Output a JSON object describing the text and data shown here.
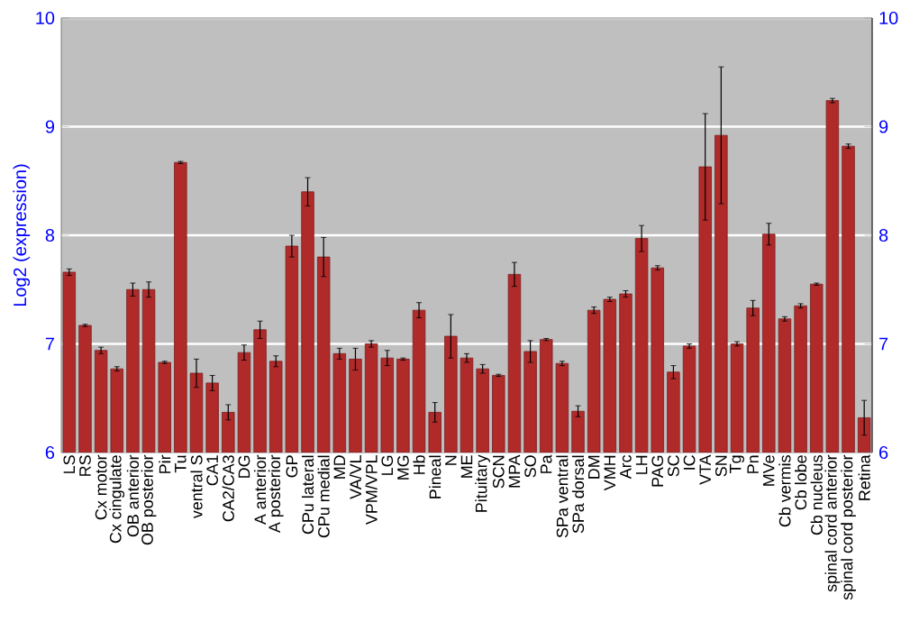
{
  "chart_data": {
    "type": "bar",
    "ylabel": "Log2 (expression)",
    "categories": [
      "LS",
      "RS",
      "Cx motor",
      "Cx cingulate",
      "OB anterior",
      "OB posterior",
      "Pir",
      "Tu",
      "ventral S",
      "CA1",
      "CA2/CA3",
      "DG",
      "A anterior",
      "A posterior",
      "GP",
      "CPu lateral",
      "CPu medial",
      "MD",
      "VA/VL",
      "VPM/VPL",
      "LG",
      "MG",
      "Hb",
      "Pineal",
      "N",
      "ME",
      "Pituitary",
      "SCN",
      "MPA",
      "SO",
      "Pa",
      "SPa ventral",
      "SPa dorsal",
      "DM",
      "VMH",
      "Arc",
      "LH",
      "PAG",
      "SC",
      "IC",
      "VTA",
      "SN",
      "Tg",
      "Pn",
      "MVe",
      "Cb vermis",
      "Cb lobe",
      "Cb nucleus",
      "spinal cord anterior",
      "spinal cord posterior",
      "Retina"
    ],
    "values": [
      7.66,
      7.17,
      6.94,
      6.77,
      7.5,
      7.5,
      6.83,
      8.67,
      6.73,
      6.64,
      6.37,
      6.92,
      7.13,
      6.84,
      7.9,
      8.4,
      7.8,
      6.91,
      6.86,
      7.0,
      6.87,
      6.86,
      7.31,
      6.37,
      7.07,
      6.87,
      6.77,
      6.71,
      7.64,
      6.93,
      7.04,
      6.82,
      6.38,
      7.31,
      7.41,
      7.46,
      7.97,
      7.7,
      6.74,
      6.98,
      8.63,
      8.92,
      7.0,
      7.33,
      8.01,
      7.23,
      7.35,
      7.55,
      9.24,
      8.82,
      6.32
    ],
    "errors": [
      0.03,
      0.01,
      0.03,
      0.02,
      0.06,
      0.07,
      0.01,
      0.01,
      0.13,
      0.07,
      0.07,
      0.07,
      0.08,
      0.05,
      0.1,
      0.13,
      0.18,
      0.05,
      0.1,
      0.03,
      0.07,
      0.01,
      0.07,
      0.09,
      0.2,
      0.04,
      0.04,
      0.01,
      0.11,
      0.1,
      0.01,
      0.02,
      0.05,
      0.03,
      0.02,
      0.03,
      0.12,
      0.02,
      0.06,
      0.02,
      0.49,
      0.63,
      0.02,
      0.07,
      0.1,
      0.02,
      0.02,
      0.01,
      0.02,
      0.02,
      0.16
    ],
    "color": "#b02a2a",
    "ylim": [
      6,
      10
    ],
    "yticks": [
      6,
      7,
      8,
      9,
      10
    ],
    "y2lim": [
      6,
      10
    ],
    "y2ticks": [
      6,
      7,
      8,
      9,
      10
    ],
    "grid": "y"
  }
}
